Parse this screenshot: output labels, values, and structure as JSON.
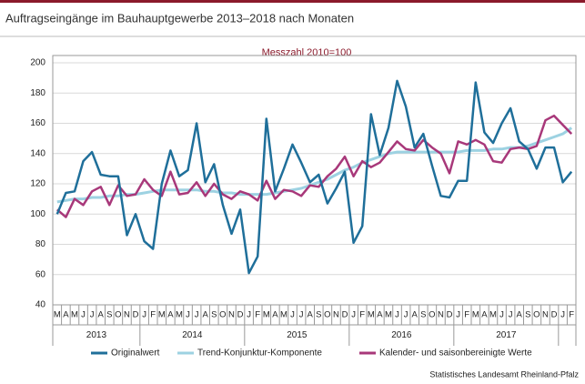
{
  "chart_data": {
    "type": "line",
    "title": "Auftragseingänge im Bauhauptgewerbe 2013–2018 nach Monaten",
    "subtitle": "Messzahl 2010=100",
    "source": "Statistisches Landesamt Rheinland-Pfalz",
    "categories": [
      "M",
      "A",
      "M",
      "J",
      "J",
      "A",
      "S",
      "O",
      "N",
      "D",
      "J",
      "F",
      "M",
      "A",
      "M",
      "J",
      "J",
      "A",
      "S",
      "O",
      "N",
      "D",
      "J",
      "F",
      "M",
      "A",
      "M",
      "J",
      "J",
      "A",
      "S",
      "O",
      "N",
      "D",
      "J",
      "F",
      "M",
      "A",
      "M",
      "J",
      "J",
      "A",
      "S",
      "O",
      "N",
      "D",
      "J",
      "F",
      "M",
      "A",
      "M",
      "J",
      "J",
      "A",
      "S",
      "O",
      "N",
      "D",
      "J",
      "F"
    ],
    "years": [
      "2013",
      "2014",
      "2015",
      "2016",
      "2017"
    ],
    "ylim": [
      40,
      200
    ],
    "yticks": [
      40,
      60,
      80,
      100,
      120,
      140,
      160,
      180,
      200
    ],
    "grid": true,
    "series": [
      {
        "name": "Originalwert",
        "color": "#1f6f9a",
        "values": [
          100,
          114,
          115,
          135,
          141,
          126,
          125,
          125,
          86,
          100,
          82,
          77,
          120,
          142,
          125,
          129,
          160,
          121,
          133,
          106,
          87,
          103,
          61,
          72,
          163,
          115,
          130,
          146,
          134,
          121,
          126,
          107,
          117,
          128,
          81,
          92,
          166,
          139,
          157,
          188,
          171,
          144,
          153,
          132,
          112,
          111,
          122,
          122,
          187,
          154,
          147,
          160,
          170,
          148,
          143,
          130,
          144,
          144,
          121,
          128
        ]
      },
      {
        "name": "Trend-Konjunktur-Komponente",
        "color": "#9dd2e2",
        "values": [
          108,
          109,
          110,
          110,
          111,
          111,
          112,
          112,
          113,
          113,
          114,
          115,
          116,
          116,
          116,
          116,
          116,
          115,
          115,
          114,
          114,
          113,
          113,
          113,
          113,
          114,
          115,
          116,
          117,
          119,
          121,
          123,
          126,
          129,
          131,
          134,
          136,
          138,
          140,
          141,
          141,
          141,
          141,
          141,
          141,
          141,
          141,
          142,
          142,
          142,
          143,
          143,
          144,
          144,
          145,
          147,
          149,
          151,
          153,
          157
        ]
      },
      {
        "name": "Kalender- und saisonbereinigte Werte",
        "color": "#a8387a",
        "values": [
          103,
          98,
          110,
          106,
          115,
          118,
          106,
          119,
          112,
          113,
          123,
          116,
          112,
          128,
          113,
          114,
          121,
          112,
          120,
          113,
          110,
          115,
          113,
          109,
          122,
          110,
          116,
          115,
          112,
          119,
          118,
          125,
          130,
          138,
          125,
          135,
          131,
          134,
          141,
          148,
          143,
          142,
          149,
          144,
          140,
          127,
          148,
          146,
          149,
          146,
          135,
          134,
          143,
          144,
          143,
          145,
          162,
          165,
          159,
          153
        ]
      }
    ]
  }
}
